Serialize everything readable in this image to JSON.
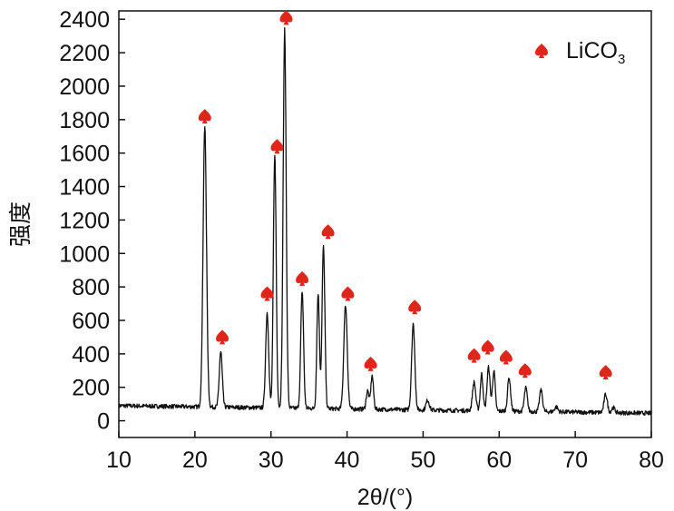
{
  "chart_data": {
    "type": "line",
    "xlabel": "2θ/(°)",
    "ylabel": "强度",
    "xlim": [
      10,
      80
    ],
    "ylim": [
      -100,
      2450
    ],
    "x_ticks": [
      10,
      20,
      30,
      40,
      50,
      60,
      70,
      80
    ],
    "y_ticks": [
      0,
      200,
      400,
      600,
      800,
      1000,
      1200,
      1400,
      1600,
      1800,
      2000,
      2200,
      2400
    ],
    "grid": false,
    "legend": {
      "placement": "top-right",
      "label": "LiCO",
      "subscript": "3"
    },
    "line_color": "#111111",
    "marker_color": "#e0261b",
    "baseline": {
      "start": 90,
      "end": 45
    },
    "peaks": [
      {
        "x": 21.3,
        "y": 1760,
        "w": 0.32
      },
      {
        "x": 23.4,
        "y": 420,
        "w": 0.28
      },
      {
        "x": 29.5,
        "y": 660,
        "w": 0.28
      },
      {
        "x": 30.5,
        "y": 1610,
        "w": 0.26
      },
      {
        "x": 31.8,
        "y": 2350,
        "w": 0.28
      },
      {
        "x": 34.1,
        "y": 790,
        "w": 0.26
      },
      {
        "x": 36.2,
        "y": 780,
        "w": 0.24
      },
      {
        "x": 36.9,
        "y": 1060,
        "w": 0.26
      },
      {
        "x": 39.8,
        "y": 710,
        "w": 0.32
      },
      {
        "x": 42.7,
        "y": 200,
        "w": 0.25
      },
      {
        "x": 43.3,
        "y": 290,
        "w": 0.25
      },
      {
        "x": 48.7,
        "y": 600,
        "w": 0.3
      },
      {
        "x": 50.6,
        "y": 150,
        "w": 0.3
      },
      {
        "x": 56.7,
        "y": 260,
        "w": 0.3
      },
      {
        "x": 57.7,
        "y": 310,
        "w": 0.25
      },
      {
        "x": 58.6,
        "y": 350,
        "w": 0.28
      },
      {
        "x": 59.3,
        "y": 330,
        "w": 0.25
      },
      {
        "x": 61.3,
        "y": 290,
        "w": 0.28
      },
      {
        "x": 63.5,
        "y": 230,
        "w": 0.28
      },
      {
        "x": 65.5,
        "y": 220,
        "w": 0.28
      },
      {
        "x": 67.5,
        "y": 120,
        "w": 0.3
      },
      {
        "x": 74.0,
        "y": 200,
        "w": 0.3
      },
      {
        "x": 75.0,
        "y": 120,
        "w": 0.3
      }
    ],
    "markers": [
      {
        "x": 21.3,
        "y": 1820
      },
      {
        "x": 23.6,
        "y": 500
      },
      {
        "x": 29.5,
        "y": 760
      },
      {
        "x": 30.8,
        "y": 1640
      },
      {
        "x": 32.0,
        "y": 2410
      },
      {
        "x": 34.1,
        "y": 850
      },
      {
        "x": 37.5,
        "y": 1130
      },
      {
        "x": 40.1,
        "y": 760
      },
      {
        "x": 43.1,
        "y": 340
      },
      {
        "x": 48.9,
        "y": 680
      },
      {
        "x": 56.7,
        "y": 390
      },
      {
        "x": 58.5,
        "y": 440
      },
      {
        "x": 60.9,
        "y": 380
      },
      {
        "x": 63.4,
        "y": 300
      },
      {
        "x": 74.0,
        "y": 290
      }
    ]
  }
}
